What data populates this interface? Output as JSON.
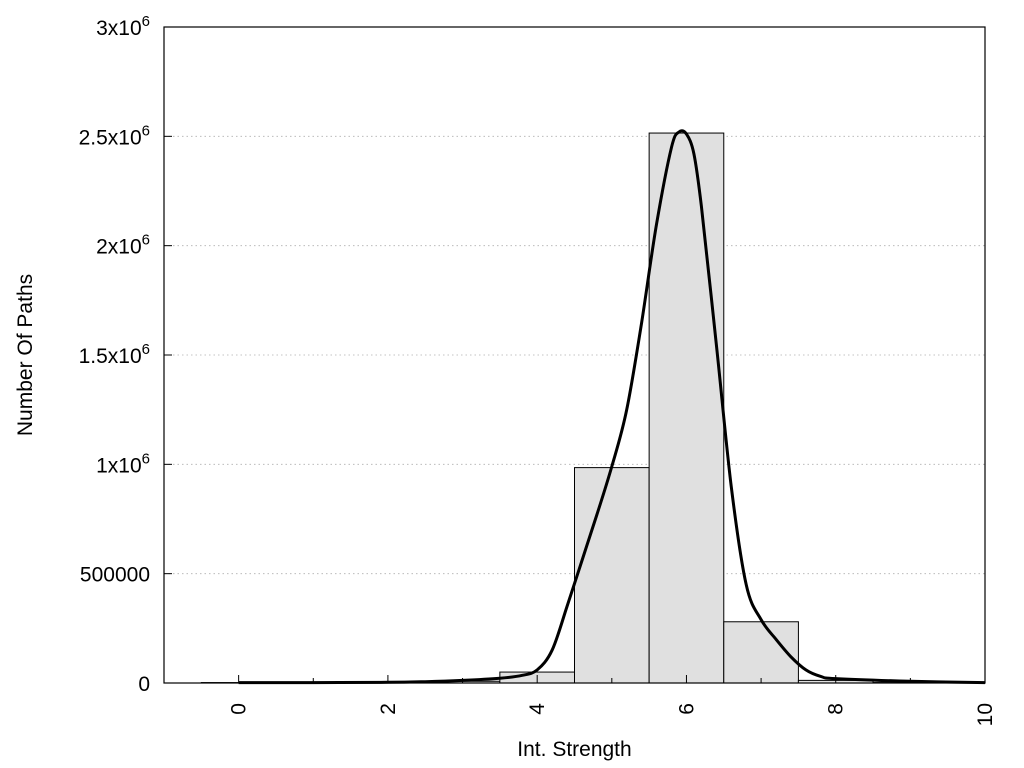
{
  "chart_data": {
    "type": "bar",
    "title": "",
    "xlabel": "Int. Strength",
    "ylabel": "Number Of Paths",
    "xlim": [
      -1,
      10
    ],
    "ylim": [
      0,
      3000000
    ],
    "grid": "horizontal dotted",
    "legend": "none",
    "x_ticks": [
      {
        "value": 0,
        "label": "0"
      },
      {
        "value": 2,
        "label": "2"
      },
      {
        "value": 4,
        "label": "4"
      },
      {
        "value": 6,
        "label": "6"
      },
      {
        "value": 8,
        "label": "8"
      },
      {
        "value": 10,
        "label": "10"
      }
    ],
    "y_ticks": [
      {
        "value": 0,
        "base": "0",
        "exp": ""
      },
      {
        "value": 500000,
        "base": "500000",
        "exp": ""
      },
      {
        "value": 1000000,
        "base": "1x10",
        "exp": "6"
      },
      {
        "value": 1500000,
        "base": "1.5x10",
        "exp": "6"
      },
      {
        "value": 2000000,
        "base": "2x10",
        "exp": "6"
      },
      {
        "value": 2500000,
        "base": "2.5x10",
        "exp": "6"
      },
      {
        "value": 3000000,
        "base": "3x10",
        "exp": "6"
      }
    ],
    "bar_width": 1,
    "categories": [
      0,
      1,
      2,
      3,
      4,
      5,
      6,
      7,
      8,
      9
    ],
    "values": [
      2000,
      1000,
      1000,
      8000,
      50000,
      985000,
      2515000,
      280000,
      12000,
      2000
    ],
    "curve": {
      "x": [
        0,
        1,
        2,
        2.5,
        3,
        3.5,
        3.8,
        4,
        4.2,
        4.4,
        4.6,
        4.8,
        5,
        5.2,
        5.4,
        5.6,
        5.8,
        5.9,
        6,
        6.1,
        6.2,
        6.4,
        6.6,
        6.8,
        7,
        7.2,
        7.4,
        7.6,
        7.8,
        8,
        9,
        10
      ],
      "y": [
        2000,
        2000,
        3000,
        6000,
        12000,
        22000,
        35000,
        60000,
        150000,
        350000,
        560000,
        770000,
        990000,
        1250000,
        1650000,
        2100000,
        2450000,
        2520000,
        2510000,
        2420000,
        2180000,
        1550000,
        900000,
        450000,
        290000,
        200000,
        120000,
        60000,
        30000,
        20000,
        8000,
        2000
      ]
    },
    "colors": {
      "bar_fill": "#e0e0e0",
      "bar_stroke": "#000000",
      "curve": "#000000",
      "grid": "#b0b0b0"
    }
  }
}
